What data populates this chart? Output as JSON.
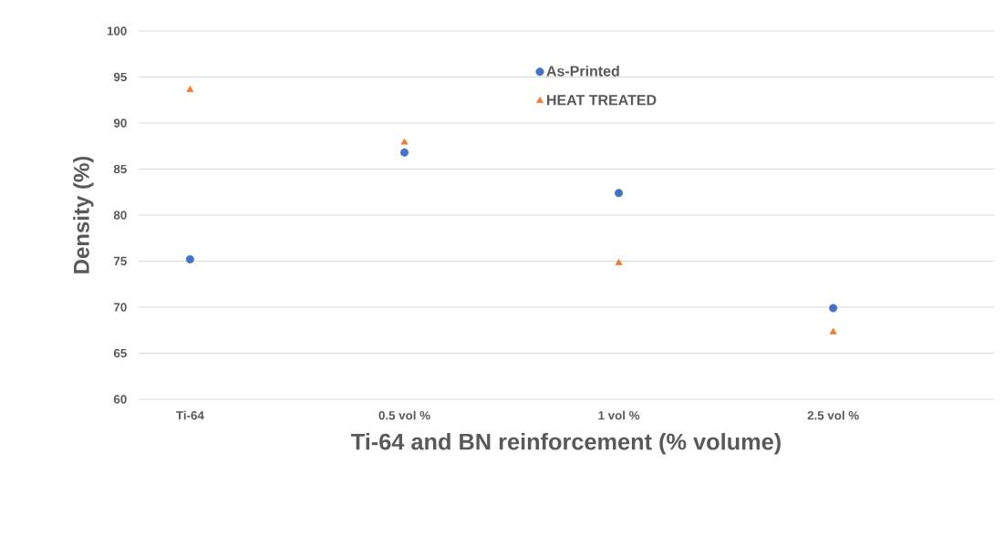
{
  "chart_data": {
    "type": "scatter",
    "xlabel": "Ti-64 and BN reinforcement (% volume)",
    "ylabel": "Density (%)",
    "categories": [
      "Ti-64",
      "0.5 vol %",
      "1 vol %",
      "2.5 vol %"
    ],
    "series": [
      {
        "name": "As-Printed",
        "color": "#4472c4",
        "marker": "circle",
        "values": [
          75.2,
          86.8,
          82.4,
          69.9
        ]
      },
      {
        "name": "HEAT TREATED",
        "color": "#ed7d31",
        "marker": "triangle",
        "values": [
          93.6,
          87.9,
          74.8,
          67.3
        ]
      }
    ],
    "ylim": [
      60,
      100
    ],
    "yticks": [
      60,
      65,
      70,
      75,
      80,
      85,
      90,
      95,
      100
    ],
    "grid": "y",
    "legend": "top"
  }
}
